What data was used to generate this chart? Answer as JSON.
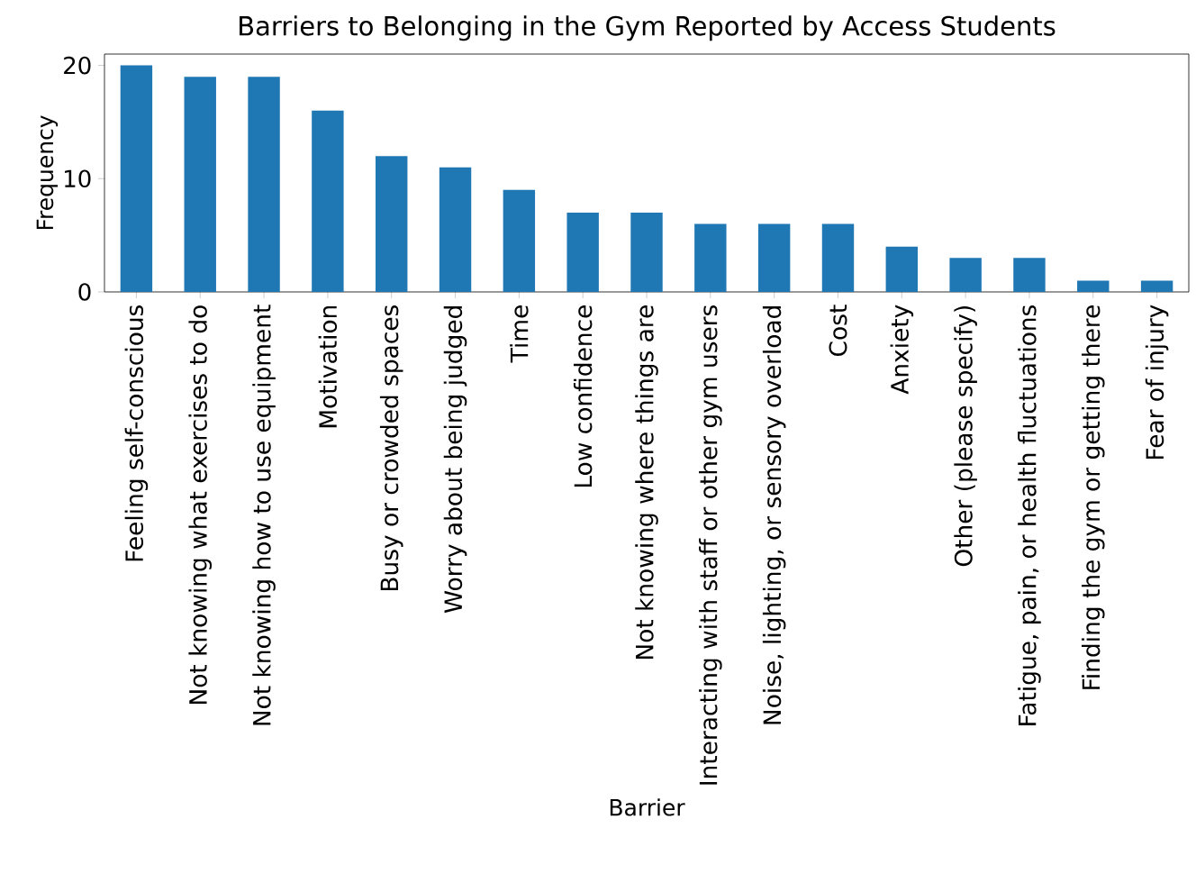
{
  "chart_data": {
    "type": "bar",
    "title": "Barriers to Belonging in the Gym Reported by Access Students",
    "xlabel": "Barrier",
    "ylabel": "Frequency",
    "categories": [
      "Feeling self-conscious",
      "Not knowing what exercises to do",
      "Not knowing how to use equipment",
      "Motivation",
      "Busy or crowded spaces",
      "Worry about being judged",
      "Time",
      "Low confidence",
      "Not knowing where things are",
      "Interacting with staff or other gym users",
      "Noise, lighting, or sensory overload",
      "Cost",
      "Anxiety",
      "Other (please specify)",
      "Fatigue, pain, or health fluctuations",
      "Finding the gym or getting there",
      "Fear of injury"
    ],
    "values": [
      20,
      19,
      19,
      16,
      12,
      11,
      9,
      7,
      7,
      6,
      6,
      6,
      4,
      3,
      3,
      1,
      1
    ],
    "color": "#1f77b4",
    "ylim": [
      0,
      21
    ],
    "yticks": [
      0,
      10,
      20
    ],
    "grid": false
  }
}
